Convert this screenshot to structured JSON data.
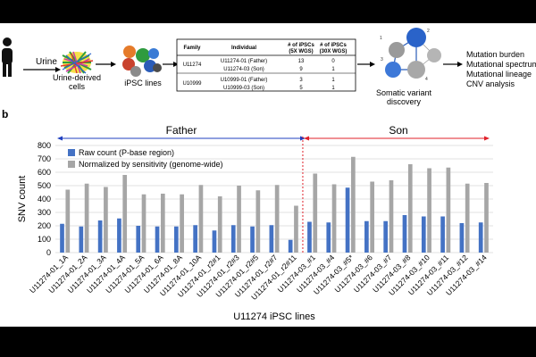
{
  "panel_a": {
    "labels": {
      "urine": "Urine",
      "urine_cells_line1": "Urine-derived",
      "urine_cells_line2": "cells",
      "ipsc_lines": "iPSC lines",
      "somatic_line1": "Somatic variant",
      "somatic_line2": "discovery"
    },
    "analyses": [
      "Mutation burden",
      "Mutational spectrum",
      "Mutational lineage",
      "CNV analysis"
    ],
    "table": {
      "headers": [
        "Family",
        "Individual",
        "# of iPSCs\n(5X WGS)",
        "# of iPSCs\n(30X WGS)"
      ],
      "rows": [
        [
          "U11274",
          "U11274-01 (Father)",
          "13",
          "0"
        ],
        [
          "",
          "U11274-03 (Son)",
          "9",
          "1"
        ],
        [
          "U10999",
          "U10999-01 (Father)",
          "3",
          "1"
        ],
        [
          "",
          "U10999-03 (Son)",
          "5",
          "1"
        ]
      ]
    },
    "network_node_numbers": [
      "1",
      "2",
      "3",
      "4"
    ]
  },
  "panel_b": {
    "panel_letter": "b",
    "groups": [
      {
        "name": "Father",
        "color": "#1F3FBF"
      },
      {
        "name": "Son",
        "color": "#E0202A"
      }
    ]
  },
  "chart_data": {
    "type": "bar",
    "xlabel": "U11274 iPSC lines",
    "ylabel": "SNV count",
    "ylim": [
      0,
      800
    ],
    "yticks": [
      0,
      100,
      200,
      300,
      400,
      500,
      600,
      700,
      800
    ],
    "grid": true,
    "legend_position": "top-left",
    "categories": [
      "U11274-01_1A",
      "U11274-01_2A",
      "U11274-01_3A",
      "U11274-01_4A",
      "U11274-01_5A",
      "U11274-01_6A",
      "U11274-01_8A",
      "U11274-01_10A",
      "U11274-01_r2#1",
      "U11274-01_r2#3",
      "U11274-01_r2#5",
      "U11274-01_r2#7",
      "U11274-01_r2#11",
      "U11274-03_#1",
      "U11274-03_#4",
      "U11274-03_#5*",
      "U11274-03_#6",
      "U11274-03_#7",
      "U11274-03_#8",
      "U11274-03_#10",
      "U11274-03_#11",
      "U11274-03_#12",
      "U11274-03_#14"
    ],
    "group_split_after_index": 12,
    "series": [
      {
        "name": "Raw count (P-base region)",
        "color": "#4472C4",
        "values": [
          215,
          195,
          240,
          255,
          200,
          195,
          195,
          205,
          165,
          205,
          195,
          205,
          95,
          230,
          225,
          485,
          235,
          235,
          280,
          270,
          270,
          220,
          225
        ]
      },
      {
        "name": "Normalized by sensitivity (genome-wide)",
        "color": "#A6A6A6",
        "values": [
          470,
          515,
          490,
          580,
          435,
          440,
          435,
          505,
          420,
          500,
          465,
          505,
          350,
          590,
          510,
          715,
          530,
          540,
          660,
          630,
          635,
          515,
          520
        ]
      }
    ]
  }
}
